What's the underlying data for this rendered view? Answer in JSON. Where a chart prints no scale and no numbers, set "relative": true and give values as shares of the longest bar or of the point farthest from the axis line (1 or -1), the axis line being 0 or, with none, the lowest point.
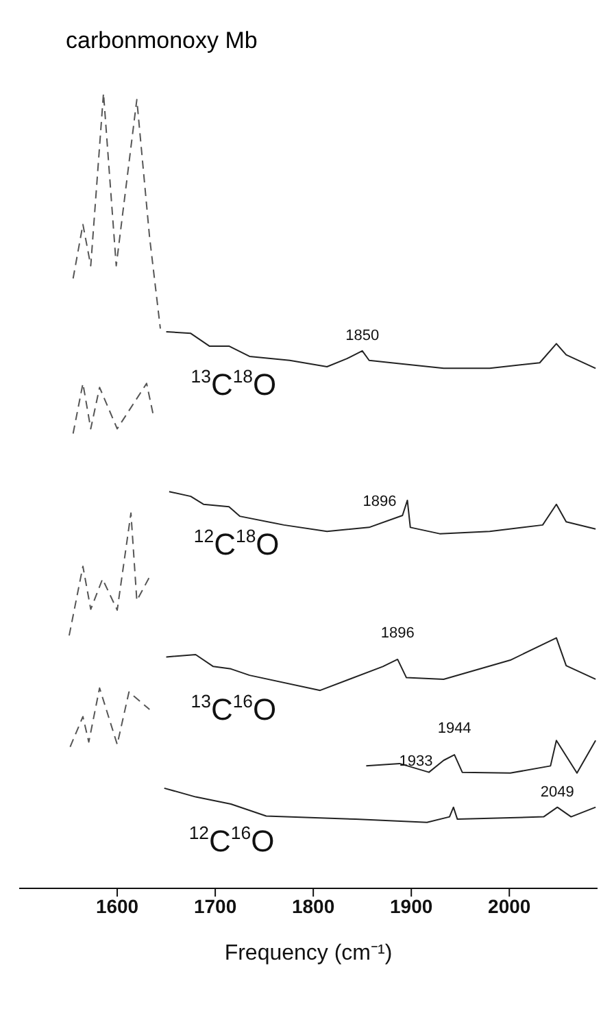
{
  "chart_data": {
    "type": "line",
    "title": "carbonmonoxy Mb",
    "xlabel": "Frequency  (cm⁻¹)",
    "relative": true,
    "xlim": [
      1500,
      2090
    ],
    "xticks": [
      1600,
      1700,
      1800,
      1900,
      2000
    ],
    "marker": "none",
    "series": [
      {
        "name": "$^{13}$C$^{18}$O",
        "color": "#222222",
        "line_style": "solid",
        "x": [
          1650,
          1675,
          1694,
          1714,
          1735,
          1776,
          1814,
          1834,
          1850,
          1857,
          1888,
          1933,
          1980,
          2031,
          2048,
          2058,
          2088
        ],
        "values": [
          0.7,
          0.698,
          0.682,
          0.682,
          0.669,
          0.664,
          0.656,
          0.666,
          0.676,
          0.664,
          0.66,
          0.654,
          0.654,
          0.661,
          0.685,
          0.671,
          0.654
        ]
      },
      {
        "name": "$^{12}$C$^{18}$O",
        "color": "#222222",
        "line_style": "solid",
        "x": [
          1653,
          1675,
          1688,
          1714,
          1725,
          1770,
          1814,
          1857,
          1891,
          1896,
          1899,
          1929,
          1980,
          2034,
          2048,
          2058,
          2088
        ],
        "values": [
          0.499,
          0.493,
          0.483,
          0.48,
          0.468,
          0.457,
          0.449,
          0.454,
          0.469,
          0.488,
          0.454,
          0.446,
          0.449,
          0.457,
          0.483,
          0.461,
          0.452
        ]
      },
      {
        "name": "$^{13}$C$^{16}$O",
        "color": "#222222",
        "line_style": "solid",
        "x": [
          1650,
          1680,
          1698,
          1716,
          1735,
          1807,
          1871,
          1886,
          1895,
          1933,
          2001,
          2048,
          2058,
          2088
        ],
        "values": [
          0.291,
          0.294,
          0.279,
          0.276,
          0.268,
          0.249,
          0.279,
          0.288,
          0.265,
          0.263,
          0.287,
          0.315,
          0.28,
          0.263
        ]
      },
      {
        "name": "$^{12}$C$^{16}$O",
        "color": "#222222",
        "line_style": "solid",
        "x": [
          1648,
          1680,
          1716,
          1752,
          1843,
          1916,
          1939,
          1943,
          1947,
          2035,
          2049,
          2063,
          2088
        ],
        "values": [
          0.126,
          0.115,
          0.106,
          0.091,
          0.087,
          0.083,
          0.09,
          0.102,
          0.087,
          0.09,
          0.102,
          0.09,
          0.102
        ]
      },
      {
        "color": "#222222",
        "line_style": "solid",
        "x": [
          1854,
          1888,
          1918,
          1933,
          1944,
          1952,
          2001,
          2042,
          2048,
          2069,
          2088
        ],
        "values": [
          0.154,
          0.157,
          0.146,
          0.161,
          0.168,
          0.146,
          0.145,
          0.154,
          0.186,
          0.145,
          0.186
        ]
      },
      {
        "color": "#555555",
        "line_style": "dashed",
        "x": [
          1555,
          1565,
          1573,
          1586,
          1599,
          1620,
          1633,
          1644
        ],
        "values": [
          0.767,
          0.835,
          0.783,
          1,
          0.783,
          0.992,
          0.819,
          0.704
        ]
      },
      {
        "color": "#555555",
        "line_style": "dashed",
        "x": [
          1555,
          1565,
          1573,
          1582,
          1600,
          1630,
          1637
        ],
        "values": [
          0.572,
          0.635,
          0.578,
          0.63,
          0.578,
          0.635,
          0.594
        ]
      },
      {
        "color": "#555555",
        "line_style": "dashed",
        "x": [
          1551,
          1565,
          1573,
          1585,
          1600,
          1614,
          1620,
          1634
        ],
        "values": [
          0.318,
          0.405,
          0.351,
          0.389,
          0.35,
          0.472,
          0.362,
          0.394
        ]
      },
      {
        "color": "#555555",
        "line_style": "dashed",
        "x": [
          1552,
          1565,
          1571,
          1582,
          1600,
          1612,
          1633
        ],
        "values": [
          0.178,
          0.216,
          0.184,
          0.252,
          0.181,
          0.247,
          0.225
        ]
      }
    ],
    "annotations": [
      {
        "text": "1850",
        "x": 1850,
        "y": 0.676
      },
      {
        "text": "1896",
        "x": 1896,
        "y": 0.488
      },
      {
        "text": "1896",
        "x": 1886,
        "y": 0.288
      },
      {
        "text": "1933",
        "x": 1933,
        "y": 0.161
      },
      {
        "text": "1944",
        "x": 1944,
        "y": 0.168
      },
      {
        "text": "2049",
        "x": 2049,
        "y": 0.102
      }
    ]
  }
}
